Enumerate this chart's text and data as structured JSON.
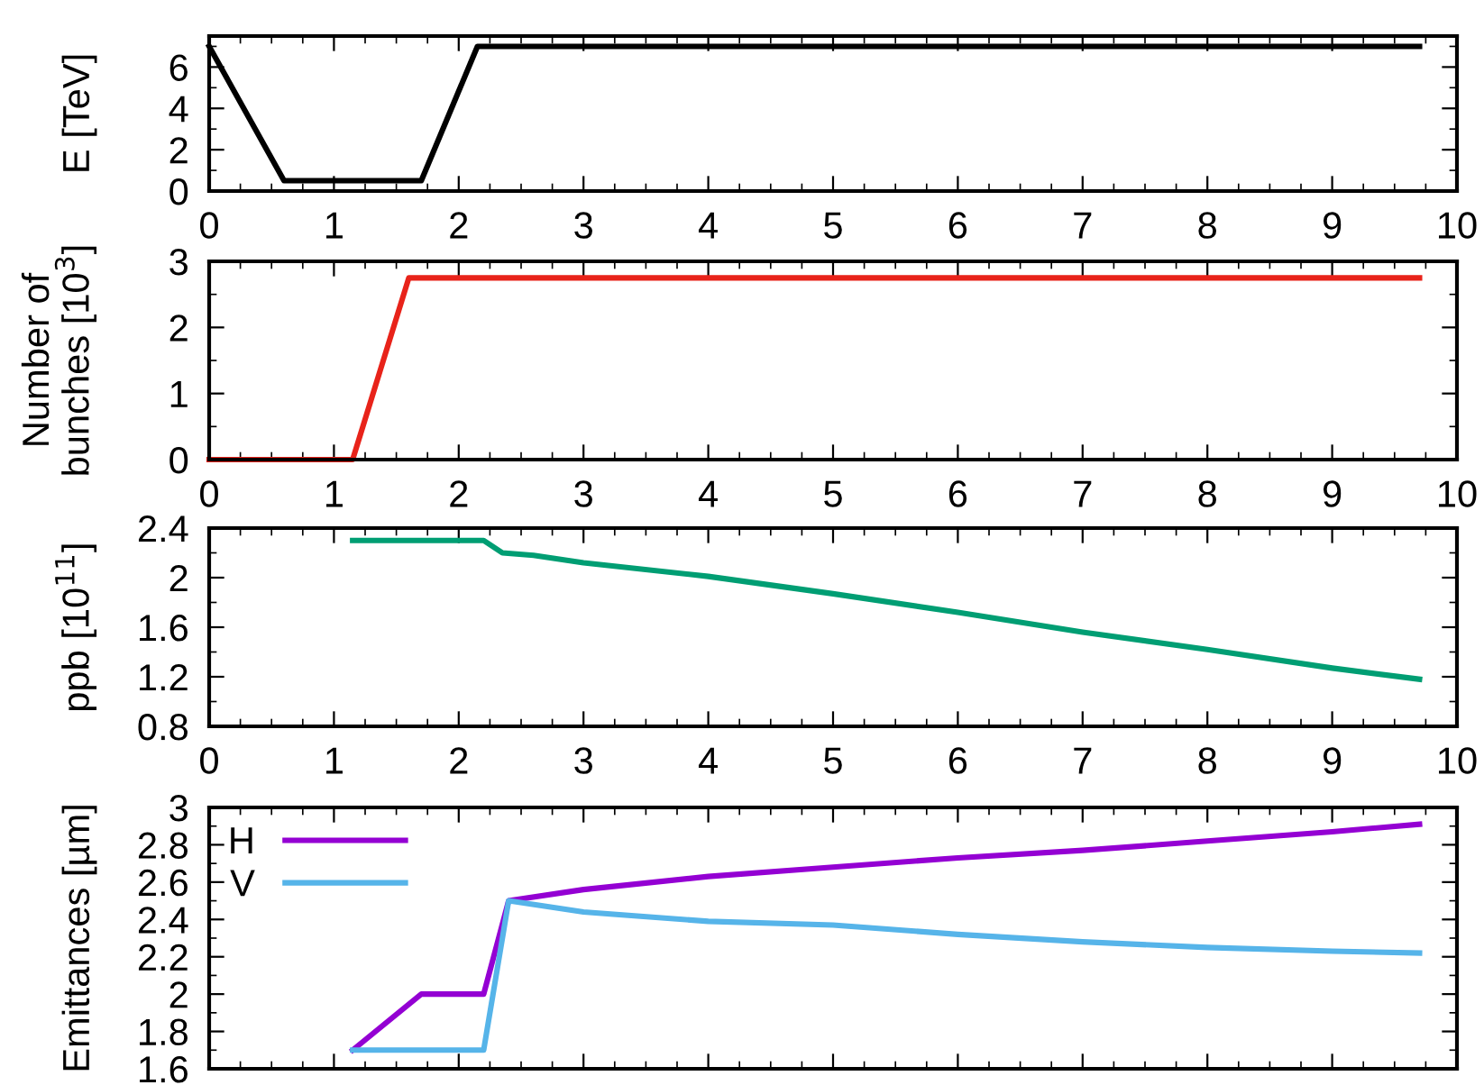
{
  "chart_data": [
    {
      "type": "line",
      "ylabel": "E [TeV]",
      "xlim": [
        0,
        10
      ],
      "xticks": [
        0,
        1,
        2,
        3,
        4,
        5,
        6,
        7,
        8,
        9,
        10
      ],
      "ylim": [
        0,
        7.5
      ],
      "yticks": [
        0,
        2,
        4,
        6
      ],
      "grid": false,
      "legend": false,
      "series": [
        {
          "color": "#000000",
          "x": [
            0,
            0.6,
            1.7,
            2.15,
            9.7
          ],
          "values": [
            7,
            0.5,
            0.5,
            7,
            7
          ]
        }
      ]
    },
    {
      "type": "line",
      "ylabel": "Number of\nbunches [10$^{3}$]",
      "xlim": [
        0,
        10
      ],
      "xticks": [
        0,
        1,
        2,
        3,
        4,
        5,
        6,
        7,
        8,
        9,
        10
      ],
      "ylim": [
        0,
        3
      ],
      "yticks": [
        0,
        1,
        2,
        3
      ],
      "grid": false,
      "legend": false,
      "series": [
        {
          "color": "#e8231a",
          "x": [
            0,
            1.15,
            1.6,
            9.7
          ],
          "values": [
            0,
            0,
            2.75,
            2.75
          ]
        }
      ]
    },
    {
      "type": "line",
      "ylabel": "ppb [10$^{11}$]",
      "xlim": [
        0,
        10
      ],
      "xticks": [
        0,
        1,
        2,
        3,
        4,
        5,
        6,
        7,
        8,
        9,
        10
      ],
      "ylim": [
        0.8,
        2.4
      ],
      "yticks": [
        0.8,
        1.2,
        1.6,
        2,
        2.4
      ],
      "grid": false,
      "legend": false,
      "series": [
        {
          "color": "#009e73",
          "x": [
            1.15,
            2.2,
            2.35,
            2.6,
            3,
            4,
            5,
            6,
            7,
            8,
            9,
            9.7
          ],
          "values": [
            2.3,
            2.3,
            2.2,
            2.18,
            2.12,
            2.01,
            1.87,
            1.72,
            1.56,
            1.42,
            1.27,
            1.18
          ]
        }
      ]
    },
    {
      "type": "line",
      "ylabel": "Emittances [µm]",
      "xlim": [
        0,
        10
      ],
      "xticks": [
        0,
        1,
        2,
        3,
        4,
        5,
        6,
        7,
        8,
        9,
        10
      ],
      "ylim": [
        1.6,
        3
      ],
      "yticks": [
        1.6,
        1.8,
        2,
        2.2,
        2.4,
        2.6,
        2.8,
        3
      ],
      "grid": false,
      "legend": "top left",
      "tick_labels": "y",
      "series": [
        {
          "name": "H",
          "color": "#9400d3",
          "x": [
            1.15,
            1.7,
            2.2,
            2.4,
            3,
            4,
            5,
            6,
            7,
            8,
            9,
            9.7
          ],
          "values": [
            1.7,
            2.0,
            2.0,
            2.5,
            2.56,
            2.63,
            2.68,
            2.73,
            2.77,
            2.82,
            2.87,
            2.91
          ]
        },
        {
          "name": "V",
          "color": "#56b4e9",
          "x": [
            1.15,
            2.2,
            2.4,
            3,
            4,
            5,
            6,
            7,
            8,
            9,
            9.7
          ],
          "values": [
            1.7,
            1.7,
            2.5,
            2.44,
            2.39,
            2.37,
            2.32,
            2.28,
            2.25,
            2.23,
            2.22
          ]
        }
      ]
    }
  ]
}
